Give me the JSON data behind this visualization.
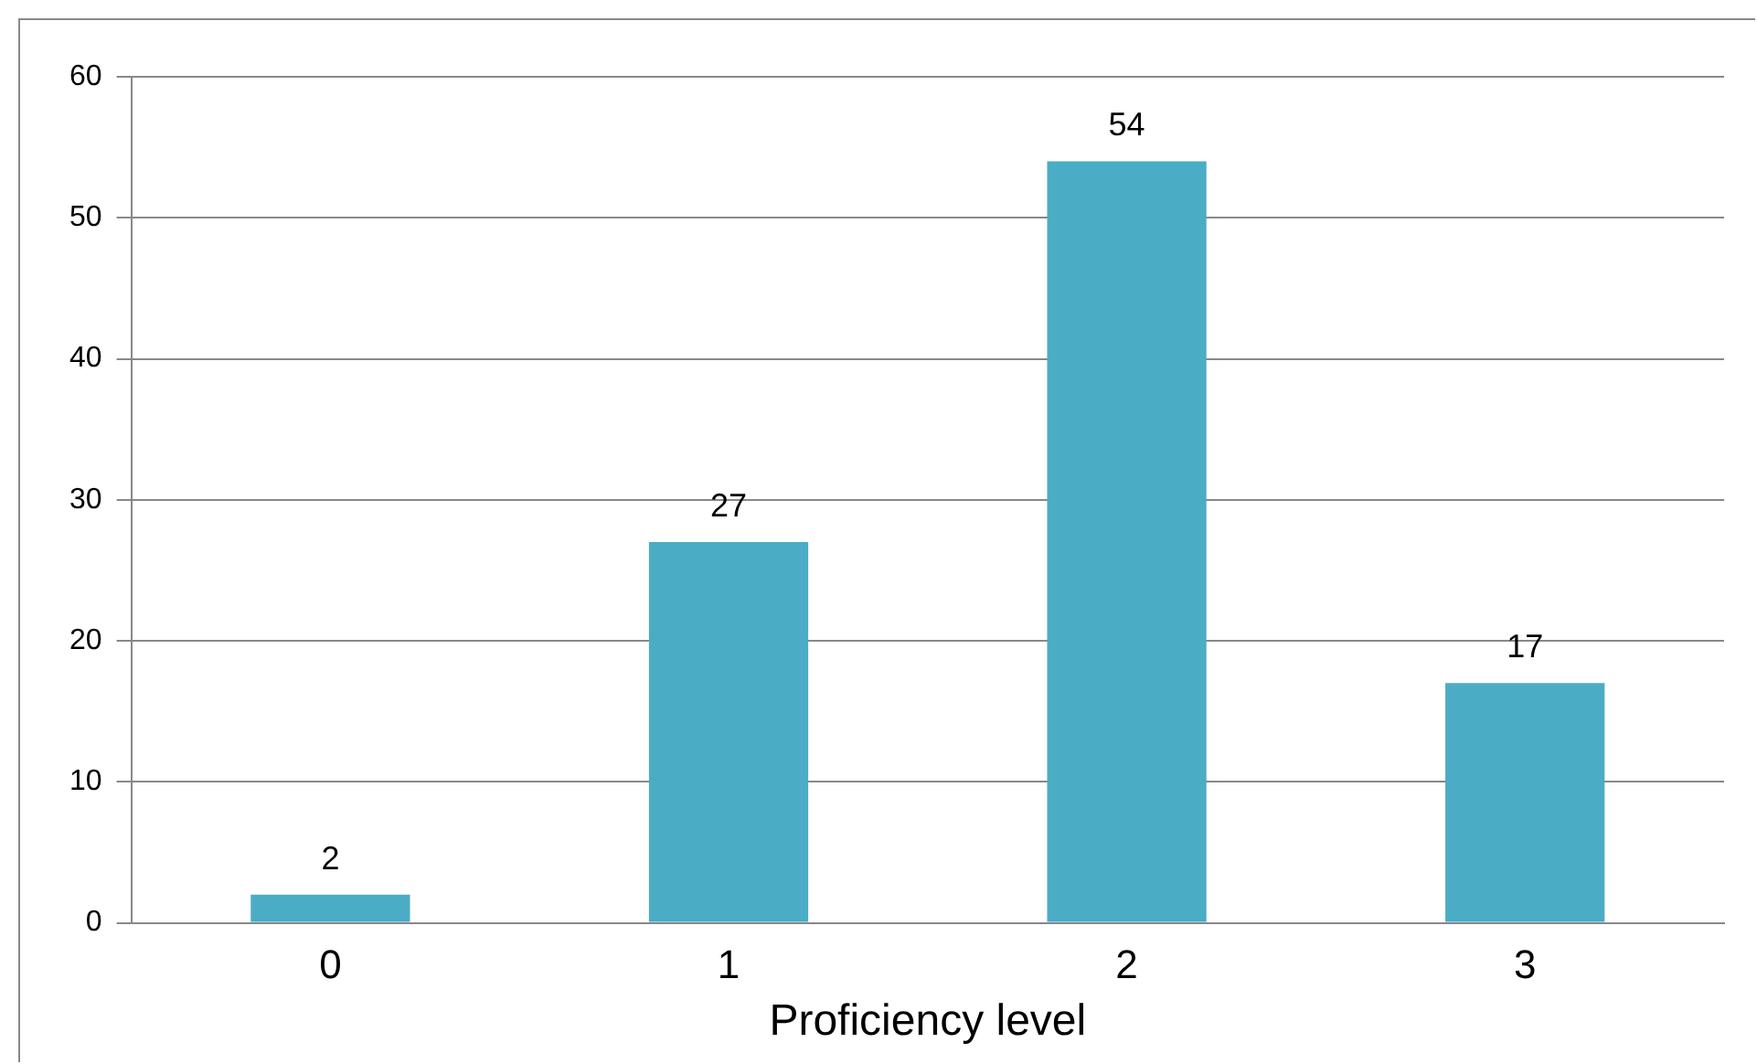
{
  "chart_data": {
    "type": "bar",
    "xlabel": "Proficiency level",
    "categories": [
      "0",
      "1",
      "2",
      "3"
    ],
    "values": [
      2,
      27,
      54,
      17
    ],
    "color": "#4bacc6",
    "ylim": [
      0,
      60
    ],
    "yticks": [
      0,
      10,
      20,
      30,
      40,
      50,
      60
    ],
    "grid": "y",
    "legend": false,
    "data_labels": true
  }
}
